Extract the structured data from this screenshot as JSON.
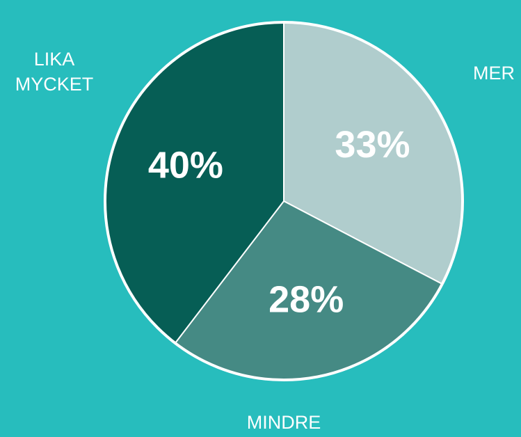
{
  "chart_data": {
    "type": "pie",
    "categories": [
      "MER",
      "MINDRE",
      "LIKA MYCKET"
    ],
    "values": [
      33,
      28,
      40
    ],
    "value_labels": [
      "33%",
      "28%",
      "40%"
    ],
    "colors": [
      "#b0cdcd",
      "#458a84",
      "#065e55"
    ]
  }
}
